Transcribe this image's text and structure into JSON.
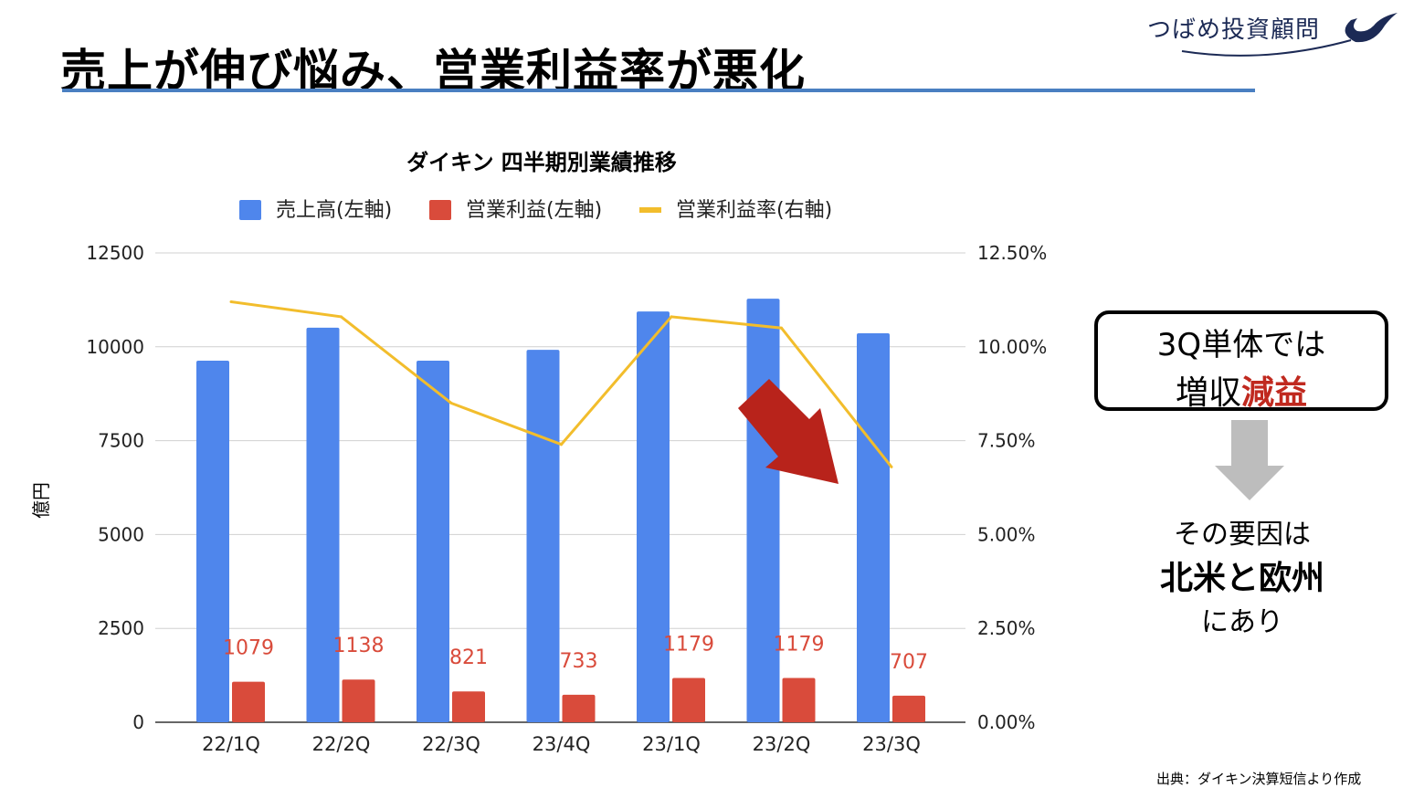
{
  "slide": {
    "title": "売上が伸び悩み、営業利益率が悪化",
    "logo_text": "つばめ投資顧問",
    "callout_line1": "3Q単体では",
    "callout_line2_normal": "増収",
    "callout_line2_emphasis": "減益",
    "cause_line1": "その要因は",
    "cause_line2": "北米と欧州",
    "cause_line3": "にあり",
    "source": "出典：ダイキン決算短信より作成",
    "colors": {
      "accent_rule": "#4a7fc1",
      "emphasis": "#c0291f",
      "arrow_red": "#b8231b",
      "arrow_gray": "#bdbdbd"
    }
  },
  "chart_data": {
    "type": "bar",
    "title": "ダイキン 四半期別業績推移",
    "ylabel": "億円",
    "xlabel": "",
    "categories": [
      "22/1Q",
      "22/2Q",
      "22/3Q",
      "23/4Q",
      "23/1Q",
      "23/2Q",
      "23/3Q"
    ],
    "ylim": [
      0,
      12500
    ],
    "y_ticks": [
      "0",
      "2500",
      "5000",
      "7500",
      "10000",
      "12500"
    ],
    "y2lim": [
      0,
      12.5
    ],
    "y2_ticks": [
      "0.00%",
      "2.50%",
      "5.00%",
      "7.50%",
      "10.00%",
      "12.50%"
    ],
    "grid": true,
    "legend_position": "top",
    "series": [
      {
        "name": "売上高(左軸)",
        "kind": "bar",
        "axis": "left",
        "color": "#4f86ec",
        "values": [
          9630,
          10510,
          9630,
          9920,
          10940,
          11280,
          10360
        ]
      },
      {
        "name": "営業利益(左軸)",
        "kind": "bar",
        "axis": "left",
        "color": "#d94b3b",
        "values": [
          1079,
          1138,
          821,
          733,
          1179,
          1179,
          707
        ],
        "data_labels": [
          "1079",
          "1138",
          "821",
          "733",
          "1179",
          "1179",
          "707"
        ]
      },
      {
        "name": "営業利益率(右軸)",
        "kind": "line",
        "axis": "right",
        "color": "#f2bd2c",
        "values": [
          11.2,
          10.8,
          8.5,
          7.4,
          10.8,
          10.5,
          6.8
        ]
      }
    ]
  }
}
